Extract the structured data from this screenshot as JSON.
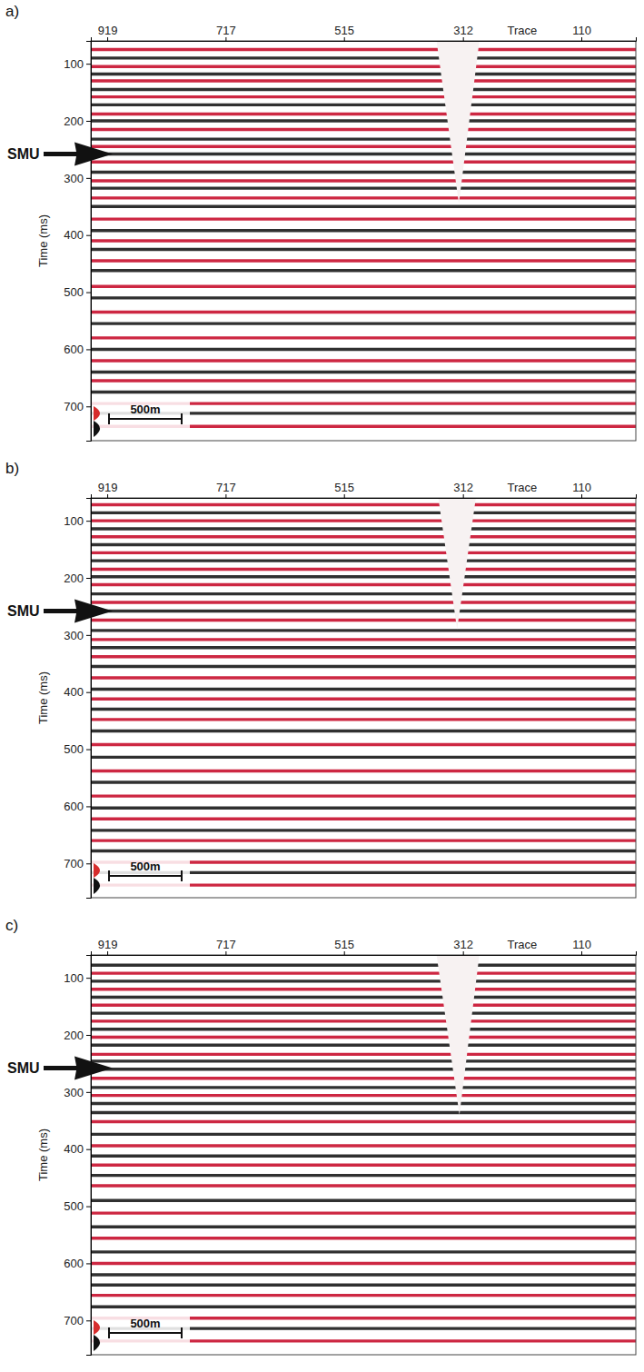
{
  "chart_data": [
    {
      "type": "seismic",
      "panel": "a)",
      "x_label": "Trace",
      "y_label": "Time (ms)",
      "xlim": [
        947,
        17
      ],
      "xticks": [
        919,
        717,
        515,
        312,
        110
      ],
      "ylim": [
        60,
        760
      ],
      "yticks": [
        100,
        200,
        300,
        400,
        500,
        600,
        700
      ],
      "marker_label": "SMU",
      "marker_time": 258,
      "scale_bar": "500m",
      "gap": {
        "top_left": 357,
        "top_right": 284,
        "apex_trace": 319,
        "apex_time": 345
      },
      "horizons": [
        {
          "time": 75,
          "color": "#c8102e"
        },
        {
          "time": 90,
          "color": "#1a1a1a"
        },
        {
          "time": 105,
          "color": "#c8102e"
        },
        {
          "time": 118,
          "color": "#1a1a1a"
        },
        {
          "time": 130,
          "color": "#c8102e"
        },
        {
          "time": 145,
          "color": "#1a1a1a"
        },
        {
          "time": 158,
          "color": "#c8102e"
        },
        {
          "time": 172,
          "color": "#1a1a1a"
        },
        {
          "time": 188,
          "color": "#c8102e"
        },
        {
          "time": 200,
          "color": "#1a1a1a"
        },
        {
          "time": 215,
          "color": "#c8102e"
        },
        {
          "time": 232,
          "color": "#1a1a1a"
        },
        {
          "time": 245,
          "color": "#c8102e"
        },
        {
          "time": 258,
          "color": "#1a1a1a"
        },
        {
          "time": 272,
          "color": "#c8102e"
        },
        {
          "time": 290,
          "color": "#1a1a1a"
        },
        {
          "time": 305,
          "color": "#c8102e"
        },
        {
          "time": 318,
          "color": "#1a1a1a"
        },
        {
          "time": 335,
          "color": "#c8102e"
        },
        {
          "time": 350,
          "color": "#1a1a1a"
        },
        {
          "time": 372,
          "color": "#c8102e"
        },
        {
          "time": 392,
          "color": "#1a1a1a"
        },
        {
          "time": 410,
          "color": "#c8102e"
        },
        {
          "time": 425,
          "color": "#1a1a1a"
        },
        {
          "time": 445,
          "color": "#c8102e"
        },
        {
          "time": 462,
          "color": "#1a1a1a"
        },
        {
          "time": 490,
          "color": "#c8102e"
        },
        {
          "time": 510,
          "color": "#1a1a1a"
        },
        {
          "time": 535,
          "color": "#c8102e"
        },
        {
          "time": 555,
          "color": "#1a1a1a"
        },
        {
          "time": 580,
          "color": "#c8102e"
        },
        {
          "time": 600,
          "color": "#1a1a1a"
        },
        {
          "time": 620,
          "color": "#c8102e"
        },
        {
          "time": 640,
          "color": "#1a1a1a"
        },
        {
          "time": 655,
          "color": "#c8102e"
        },
        {
          "time": 675,
          "color": "#1a1a1a"
        },
        {
          "time": 695,
          "color": "#c8102e"
        },
        {
          "time": 712,
          "color": "#1a1a1a"
        },
        {
          "time": 735,
          "color": "#c8102e"
        }
      ]
    },
    {
      "type": "seismic",
      "panel": "b)",
      "x_label": "Trace",
      "y_label": "Time (ms)",
      "xlim": [
        947,
        17
      ],
      "xticks": [
        919,
        717,
        515,
        312,
        110
      ],
      "ylim": [
        60,
        760
      ],
      "yticks": [
        100,
        200,
        300,
        400,
        500,
        600,
        700
      ],
      "marker_label": "SMU",
      "marker_time": 258,
      "scale_bar": "500m",
      "gap": {
        "top_left": 354,
        "top_right": 290,
        "apex_trace": 322,
        "apex_time": 290
      },
      "horizons": [
        {
          "time": 72,
          "color": "#c8102e"
        },
        {
          "time": 86,
          "color": "#1a1a1a"
        },
        {
          "time": 100,
          "color": "#c8102e"
        },
        {
          "time": 114,
          "color": "#1a1a1a"
        },
        {
          "time": 128,
          "color": "#c8102e"
        },
        {
          "time": 142,
          "color": "#1a1a1a"
        },
        {
          "time": 156,
          "color": "#c8102e"
        },
        {
          "time": 170,
          "color": "#1a1a1a"
        },
        {
          "time": 185,
          "color": "#c8102e"
        },
        {
          "time": 198,
          "color": "#1a1a1a"
        },
        {
          "time": 212,
          "color": "#c8102e"
        },
        {
          "time": 228,
          "color": "#1a1a1a"
        },
        {
          "time": 243,
          "color": "#c8102e"
        },
        {
          "time": 258,
          "color": "#1a1a1a"
        },
        {
          "time": 274,
          "color": "#c8102e"
        },
        {
          "time": 292,
          "color": "#1a1a1a"
        },
        {
          "time": 308,
          "color": "#c8102e"
        },
        {
          "time": 322,
          "color": "#1a1a1a"
        },
        {
          "time": 338,
          "color": "#c8102e"
        },
        {
          "time": 355,
          "color": "#1a1a1a"
        },
        {
          "time": 375,
          "color": "#c8102e"
        },
        {
          "time": 395,
          "color": "#1a1a1a"
        },
        {
          "time": 412,
          "color": "#c8102e"
        },
        {
          "time": 430,
          "color": "#1a1a1a"
        },
        {
          "time": 448,
          "color": "#c8102e"
        },
        {
          "time": 468,
          "color": "#1a1a1a"
        },
        {
          "time": 492,
          "color": "#c8102e"
        },
        {
          "time": 514,
          "color": "#1a1a1a"
        },
        {
          "time": 538,
          "color": "#c8102e"
        },
        {
          "time": 558,
          "color": "#1a1a1a"
        },
        {
          "time": 582,
          "color": "#c8102e"
        },
        {
          "time": 603,
          "color": "#1a1a1a"
        },
        {
          "time": 622,
          "color": "#c8102e"
        },
        {
          "time": 642,
          "color": "#1a1a1a"
        },
        {
          "time": 660,
          "color": "#c8102e"
        },
        {
          "time": 678,
          "color": "#1a1a1a"
        },
        {
          "time": 698,
          "color": "#c8102e"
        },
        {
          "time": 716,
          "color": "#1a1a1a"
        },
        {
          "time": 738,
          "color": "#c8102e"
        }
      ]
    },
    {
      "type": "seismic",
      "panel": "c)",
      "x_label": "Trace",
      "y_label": "Time (ms)",
      "xlim": [
        947,
        17
      ],
      "xticks": [
        919,
        717,
        515,
        312,
        110
      ],
      "ylim": [
        60,
        760
      ],
      "yticks": [
        100,
        200,
        300,
        400,
        500,
        600,
        700
      ],
      "marker_label": "SMU",
      "marker_time": 258,
      "scale_bar": "500m",
      "gap": {
        "top_left": 357,
        "top_right": 284,
        "apex_trace": 318,
        "apex_time": 340
      },
      "horizons": [
        {
          "time": 78,
          "color": "#1a1a1a"
        },
        {
          "time": 92,
          "color": "#c8102e"
        },
        {
          "time": 106,
          "color": "#1a1a1a"
        },
        {
          "time": 120,
          "color": "#c8102e"
        },
        {
          "time": 134,
          "color": "#1a1a1a"
        },
        {
          "time": 148,
          "color": "#c8102e"
        },
        {
          "time": 162,
          "color": "#1a1a1a"
        },
        {
          "time": 176,
          "color": "#c8102e"
        },
        {
          "time": 190,
          "color": "#1a1a1a"
        },
        {
          "time": 204,
          "color": "#c8102e"
        },
        {
          "time": 218,
          "color": "#1a1a1a"
        },
        {
          "time": 234,
          "color": "#c8102e"
        },
        {
          "time": 246,
          "color": "#1a1a1a"
        },
        {
          "time": 260,
          "color": "#1a1a1a"
        },
        {
          "time": 276,
          "color": "#c8102e"
        },
        {
          "time": 292,
          "color": "#1a1a1a"
        },
        {
          "time": 306,
          "color": "#c8102e"
        },
        {
          "time": 320,
          "color": "#1a1a1a"
        },
        {
          "time": 336,
          "color": "#1a1a1a"
        },
        {
          "time": 352,
          "color": "#c8102e"
        },
        {
          "time": 374,
          "color": "#1a1a1a"
        },
        {
          "time": 394,
          "color": "#c8102e"
        },
        {
          "time": 412,
          "color": "#1a1a1a"
        },
        {
          "time": 428,
          "color": "#c8102e"
        },
        {
          "time": 446,
          "color": "#1a1a1a"
        },
        {
          "time": 464,
          "color": "#c8102e"
        },
        {
          "time": 490,
          "color": "#1a1a1a"
        },
        {
          "time": 512,
          "color": "#c8102e"
        },
        {
          "time": 536,
          "color": "#1a1a1a"
        },
        {
          "time": 556,
          "color": "#c8102e"
        },
        {
          "time": 580,
          "color": "#1a1a1a"
        },
        {
          "time": 600,
          "color": "#c8102e"
        },
        {
          "time": 620,
          "color": "#1a1a1a"
        },
        {
          "time": 638,
          "color": "#1a1a1a"
        },
        {
          "time": 656,
          "color": "#c8102e"
        },
        {
          "time": 676,
          "color": "#1a1a1a"
        },
        {
          "time": 696,
          "color": "#c8102e"
        },
        {
          "time": 714,
          "color": "#1a1a1a"
        },
        {
          "time": 736,
          "color": "#c8102e"
        }
      ]
    }
  ]
}
